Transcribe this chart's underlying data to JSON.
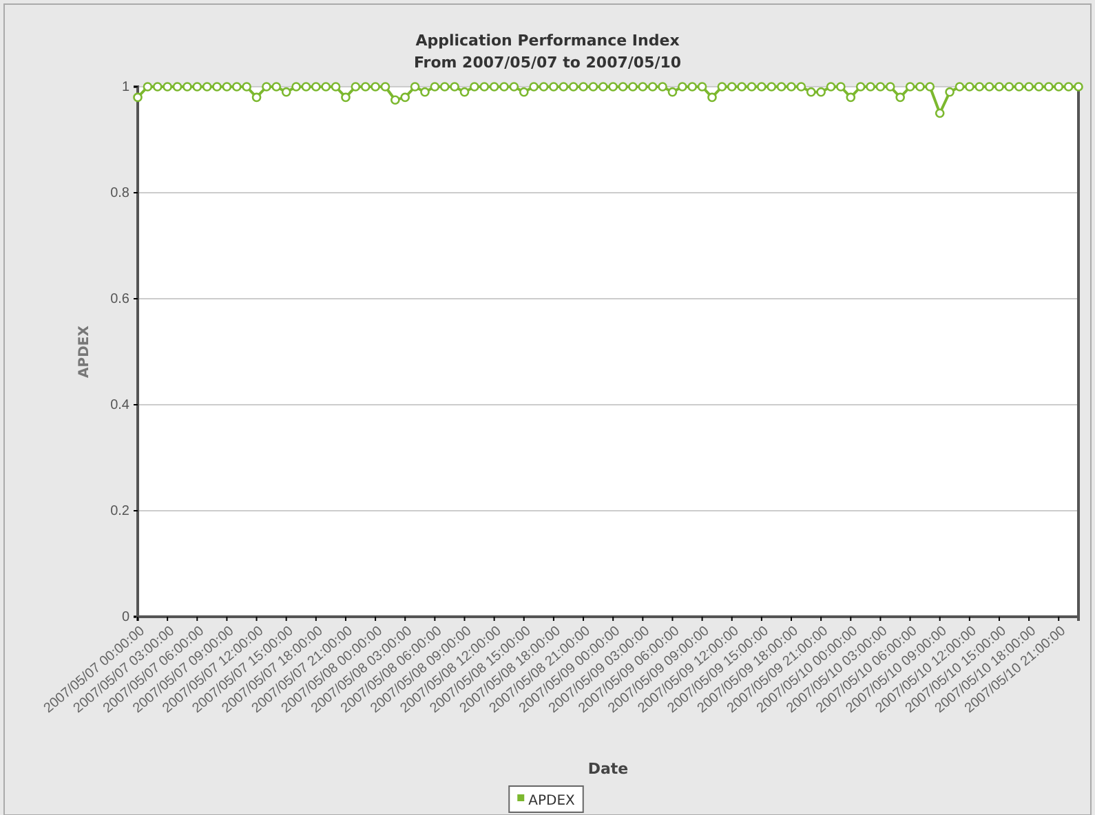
{
  "chart_data": {
    "type": "line",
    "title": "Application Performance Index",
    "subtitle": "From 2007/05/07 to 2007/05/10",
    "xlabel": "Date",
    "ylabel": "APDEX",
    "x": [
      "2007-05-07T00:00",
      "2007-05-07T01:00",
      "2007-05-07T02:00",
      "2007-05-07T03:00",
      "2007-05-07T04:00",
      "2007-05-07T05:00",
      "2007-05-07T06:00",
      "2007-05-07T07:00",
      "2007-05-07T08:00",
      "2007-05-07T09:00",
      "2007-05-07T10:00",
      "2007-05-07T11:00",
      "2007-05-07T12:00",
      "2007-05-07T13:00",
      "2007-05-07T14:00",
      "2007-05-07T15:00",
      "2007-05-07T16:00",
      "2007-05-07T17:00",
      "2007-05-07T18:00",
      "2007-05-07T19:00",
      "2007-05-07T20:00",
      "2007-05-07T21:00",
      "2007-05-07T22:00",
      "2007-05-07T23:00",
      "2007-05-08T00:00",
      "2007-05-08T01:00",
      "2007-05-08T02:00",
      "2007-05-08T03:00",
      "2007-05-08T04:00",
      "2007-05-08T05:00",
      "2007-05-08T06:00",
      "2007-05-08T07:00",
      "2007-05-08T08:00",
      "2007-05-08T09:00",
      "2007-05-08T10:00",
      "2007-05-08T11:00",
      "2007-05-08T12:00",
      "2007-05-08T13:00",
      "2007-05-08T14:00",
      "2007-05-08T15:00",
      "2007-05-08T16:00",
      "2007-05-08T17:00",
      "2007-05-08T18:00",
      "2007-05-08T19:00",
      "2007-05-08T20:00",
      "2007-05-08T21:00",
      "2007-05-08T22:00",
      "2007-05-08T23:00",
      "2007-05-09T00:00",
      "2007-05-09T01:00",
      "2007-05-09T02:00",
      "2007-05-09T03:00",
      "2007-05-09T04:00",
      "2007-05-09T05:00",
      "2007-05-09T06:00",
      "2007-05-09T07:00",
      "2007-05-09T08:00",
      "2007-05-09T09:00",
      "2007-05-09T10:00",
      "2007-05-09T11:00",
      "2007-05-09T12:00",
      "2007-05-09T13:00",
      "2007-05-09T14:00",
      "2007-05-09T15:00",
      "2007-05-09T16:00",
      "2007-05-09T17:00",
      "2007-05-09T18:00",
      "2007-05-09T19:00",
      "2007-05-09T20:00",
      "2007-05-09T21:00",
      "2007-05-09T22:00",
      "2007-05-09T23:00",
      "2007-05-10T00:00",
      "2007-05-10T01:00",
      "2007-05-10T02:00",
      "2007-05-10T03:00",
      "2007-05-10T04:00",
      "2007-05-10T05:00",
      "2007-05-10T06:00",
      "2007-05-10T07:00",
      "2007-05-10T08:00",
      "2007-05-10T09:00",
      "2007-05-10T10:00",
      "2007-05-10T11:00",
      "2007-05-10T12:00",
      "2007-05-10T13:00",
      "2007-05-10T14:00",
      "2007-05-10T15:00",
      "2007-05-10T16:00",
      "2007-05-10T17:00",
      "2007-05-10T18:00",
      "2007-05-10T19:00",
      "2007-05-10T20:00",
      "2007-05-10T21:00",
      "2007-05-10T22:00",
      "2007-05-10T23:00"
    ],
    "series": [
      {
        "name": "APDEX",
        "color": "#7cb82f",
        "values": [
          0.98,
          1,
          1,
          1,
          1,
          1,
          1,
          1,
          1,
          1,
          1,
          1,
          0.98,
          1,
          1,
          0.99,
          1,
          1,
          1,
          1,
          1,
          0.98,
          1,
          1,
          1,
          1,
          0.975,
          0.98,
          1,
          0.99,
          1,
          1,
          1,
          0.99,
          1,
          1,
          1,
          1,
          1,
          0.99,
          1,
          1,
          1,
          1,
          1,
          1,
          1,
          1,
          1,
          1,
          1,
          1,
          1,
          1,
          0.99,
          1,
          1,
          1,
          0.98,
          1,
          1,
          1,
          1,
          1,
          1,
          1,
          1,
          1,
          0.99,
          0.99,
          1,
          1,
          0.98,
          1,
          1,
          1,
          1,
          0.98,
          1,
          1,
          1,
          0.95,
          0.99,
          1,
          1,
          1,
          1,
          1,
          1,
          1,
          1,
          1,
          1,
          1,
          1,
          1
        ]
      }
    ],
    "xlim": [
      "2007-05-07T00:00",
      "2007-05-10T23:00"
    ],
    "xticks": [
      {
        "value": "2007-05-07T00:00",
        "label": "2007/05/07 00:00:00"
      },
      {
        "value": "2007-05-07T03:00",
        "label": "2007/05/07 03:00:00"
      },
      {
        "value": "2007-05-07T06:00",
        "label": "2007/05/07 06:00:00"
      },
      {
        "value": "2007-05-07T09:00",
        "label": "2007/05/07 09:00:00"
      },
      {
        "value": "2007-05-07T12:00",
        "label": "2007/05/07 12:00:00"
      },
      {
        "value": "2007-05-07T15:00",
        "label": "2007/05/07 15:00:00"
      },
      {
        "value": "2007-05-07T18:00",
        "label": "2007/05/07 18:00:00"
      },
      {
        "value": "2007-05-07T21:00",
        "label": "2007/05/07 21:00:00"
      },
      {
        "value": "2007-05-08T00:00",
        "label": "2007/05/08 00:00:00"
      },
      {
        "value": "2007-05-08T03:00",
        "label": "2007/05/08 03:00:00"
      },
      {
        "value": "2007-05-08T06:00",
        "label": "2007/05/08 06:00:00"
      },
      {
        "value": "2007-05-08T09:00",
        "label": "2007/05/08 09:00:00"
      },
      {
        "value": "2007-05-08T12:00",
        "label": "2007/05/08 12:00:00"
      },
      {
        "value": "2007-05-08T15:00",
        "label": "2007/05/08 15:00:00"
      },
      {
        "value": "2007-05-08T18:00",
        "label": "2007/05/08 18:00:00"
      },
      {
        "value": "2007-05-08T21:00",
        "label": "2007/05/08 21:00:00"
      },
      {
        "value": "2007-05-09T00:00",
        "label": "2007/05/09 00:00:00"
      },
      {
        "value": "2007-05-09T03:00",
        "label": "2007/05/09 03:00:00"
      },
      {
        "value": "2007-05-09T06:00",
        "label": "2007/05/09 06:00:00"
      },
      {
        "value": "2007-05-09T09:00",
        "label": "2007/05/09 09:00:00"
      },
      {
        "value": "2007-05-09T12:00",
        "label": "2007/05/09 12:00:00"
      },
      {
        "value": "2007-05-09T15:00",
        "label": "2007/05/09 15:00:00"
      },
      {
        "value": "2007-05-09T18:00",
        "label": "2007/05/09 18:00:00"
      },
      {
        "value": "2007-05-09T21:00",
        "label": "2007/05/09 21:00:00"
      },
      {
        "value": "2007-05-10T00:00",
        "label": "2007/05/10 00:00:00"
      },
      {
        "value": "2007-05-10T03:00",
        "label": "2007/05/10 03:00:00"
      },
      {
        "value": "2007-05-10T06:00",
        "label": "2007/05/10 06:00:00"
      },
      {
        "value": "2007-05-10T09:00",
        "label": "2007/05/10 09:00:00"
      },
      {
        "value": "2007-05-10T12:00",
        "label": "2007/05/10 12:00:00"
      },
      {
        "value": "2007-05-10T15:00",
        "label": "2007/05/10 15:00:00"
      },
      {
        "value": "2007-05-10T18:00",
        "label": "2007/05/10 18:00:00"
      },
      {
        "value": "2007-05-10T21:00",
        "label": "2007/05/10 21:00:00"
      }
    ],
    "ylim": [
      0,
      1
    ],
    "yticks": [
      0,
      0.2,
      0.4,
      0.6,
      0.8,
      1
    ],
    "grid": "y",
    "legend": "bottom",
    "marker": "circle",
    "line_style": "solid"
  }
}
